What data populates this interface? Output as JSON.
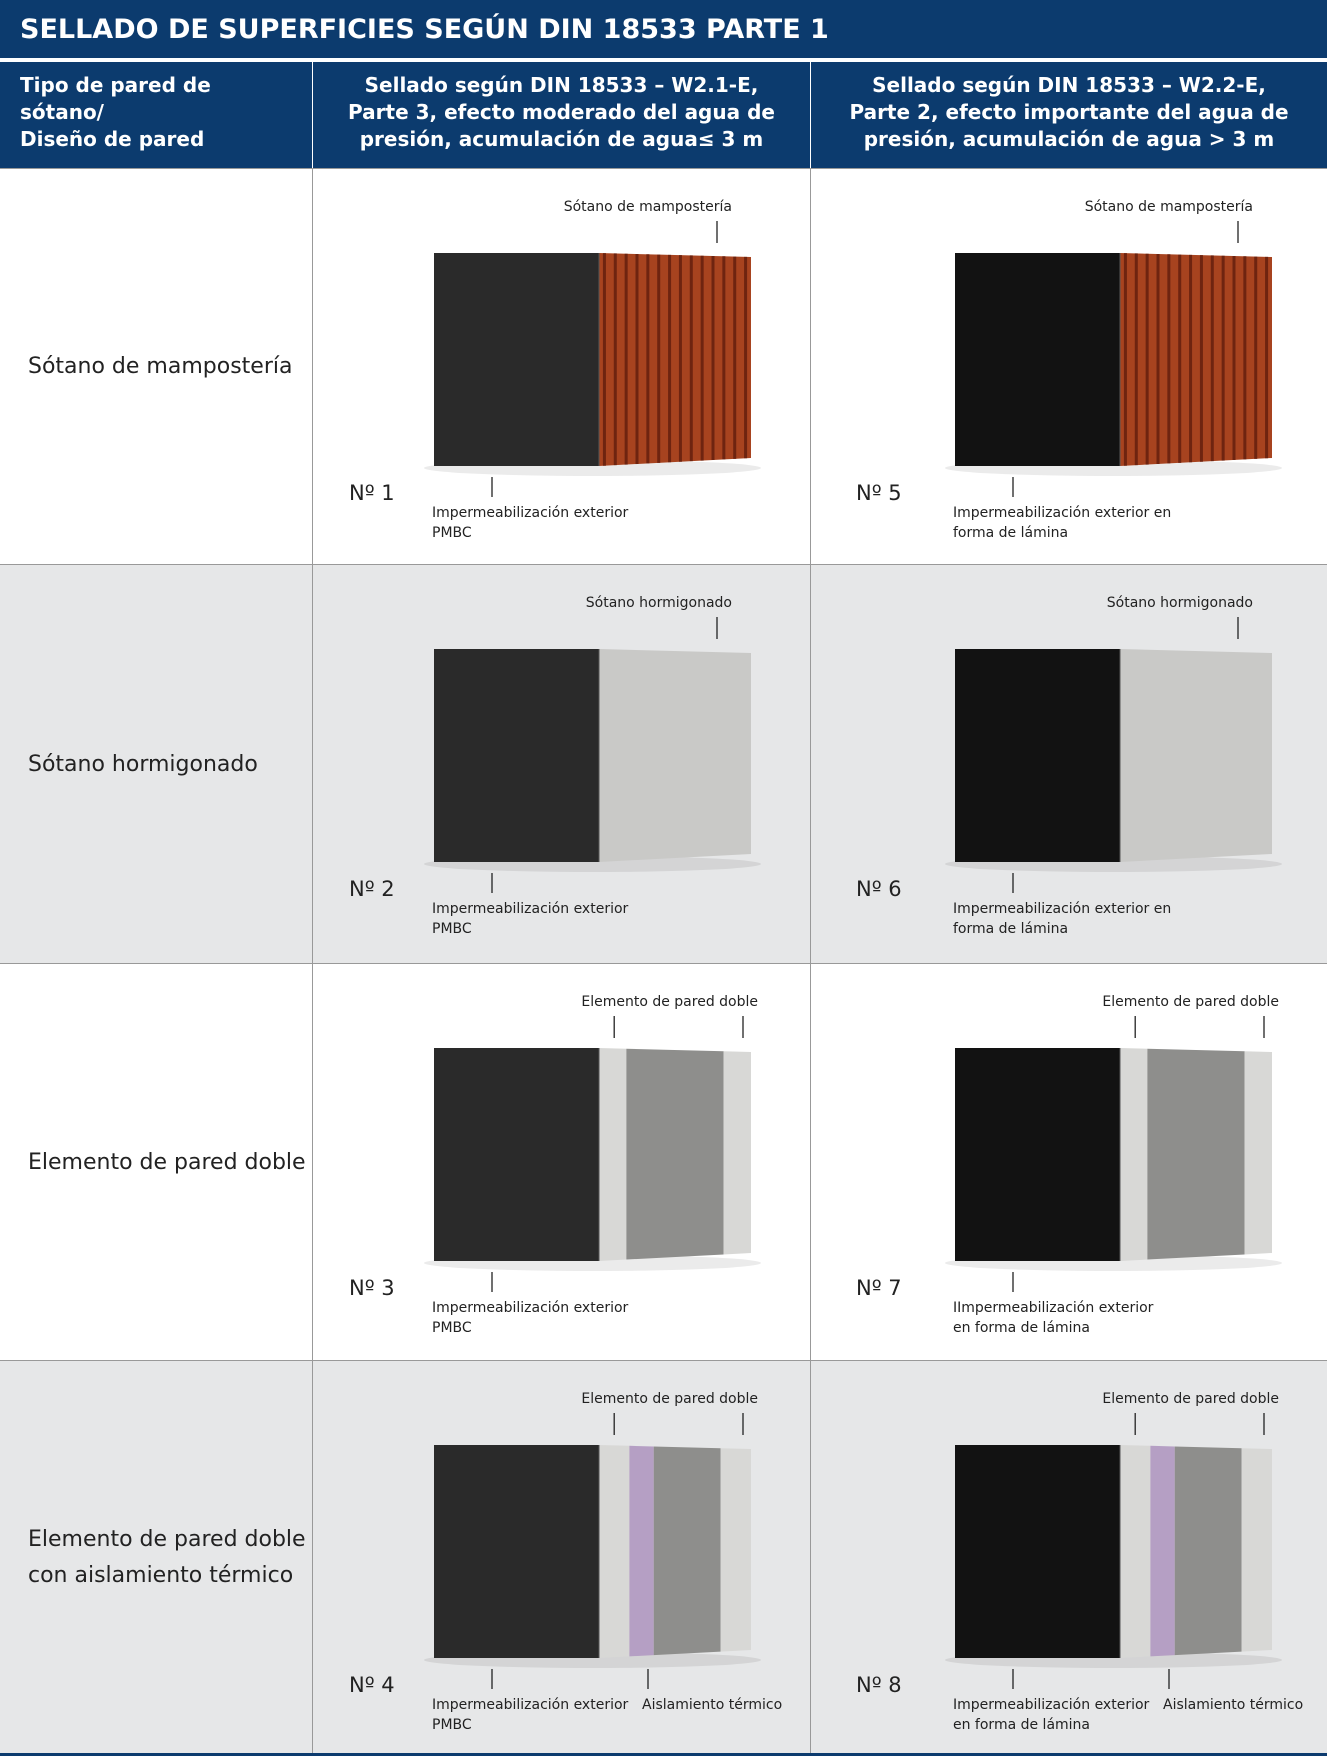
{
  "header": {
    "title": "SELLADO DE SUPERFICIES SEGÚN DIN 18533 PARTE 1"
  },
  "table": {
    "columns": [
      {
        "lines": [
          "Tipo de pared de",
          "sótano/",
          "Diseño de pared"
        ]
      },
      {
        "lines": [
          "Sellado según DIN 18533 – W2.1-E,",
          "Parte 3, efecto moderado del agua de",
          "presión, acumulación de agua≤ 3 m"
        ]
      },
      {
        "lines": [
          "Sellado según DIN 18533 – W2.2-E,",
          "Parte 2, efecto importante del agua de",
          "presión, acumulación de agua > 3 m"
        ]
      }
    ],
    "rows": [
      {
        "label": [
          "Sótano de mampostería"
        ],
        "cells": [
          {
            "number": "Nº 1",
            "top_label": "Sótano de mampostería",
            "bottom_labels": [
              {
                "lines": [
                  "Impermeabilización exterior",
                  "PMBC"
                ]
              }
            ]
          },
          {
            "number": "Nº 5",
            "top_label": "Sótano de mampostería",
            "bottom_labels": [
              {
                "lines": [
                  "Impermeabilización exterior en",
                  "forma de lámina"
                ]
              }
            ]
          }
        ]
      },
      {
        "label": [
          "Sótano hormigonado"
        ],
        "cells": [
          {
            "number": "Nº 2",
            "top_label": "Sótano hormigonado",
            "bottom_labels": [
              {
                "lines": [
                  "Impermeabilización exterior",
                  "PMBC"
                ]
              }
            ]
          },
          {
            "number": "Nº 6",
            "top_label": "Sótano hormigonado",
            "bottom_labels": [
              {
                "lines": [
                  "Impermeabilización exterior en",
                  "forma de lámina"
                ]
              }
            ]
          }
        ]
      },
      {
        "label": [
          "Elemento de pared doble"
        ],
        "cells": [
          {
            "number": "Nº 3",
            "top_label": "Elemento de pared doble",
            "bottom_labels": [
              {
                "lines": [
                  "Impermeabilización exterior",
                  "PMBC"
                ]
              }
            ]
          },
          {
            "number": "Nº 7",
            "top_label": "Elemento de pared doble",
            "bottom_labels": [
              {
                "lines": [
                  "IImpermeabilización exterior",
                  "en forma de lámina"
                ]
              }
            ]
          }
        ]
      },
      {
        "label": [
          "Elemento de pared doble",
          "con aislamiento térmico"
        ],
        "cells": [
          {
            "number": "Nº 4",
            "top_label": "Elemento de pared doble",
            "bottom_labels": [
              {
                "lines": [
                  "Impermeabilización exterior",
                  "PMBC"
                ]
              },
              {
                "lines": [
                  "Aislamiento térmico"
                ]
              }
            ]
          },
          {
            "number": "Nº 8",
            "top_label": "Elemento de pared doble",
            "bottom_labels": [
              {
                "lines": [
                  "Impermeabilización exterior",
                  "en forma de lámina"
                ]
              },
              {
                "lines": [
                  "Aislamiento térmico"
                ]
              }
            ]
          }
        ]
      }
    ]
  }
}
